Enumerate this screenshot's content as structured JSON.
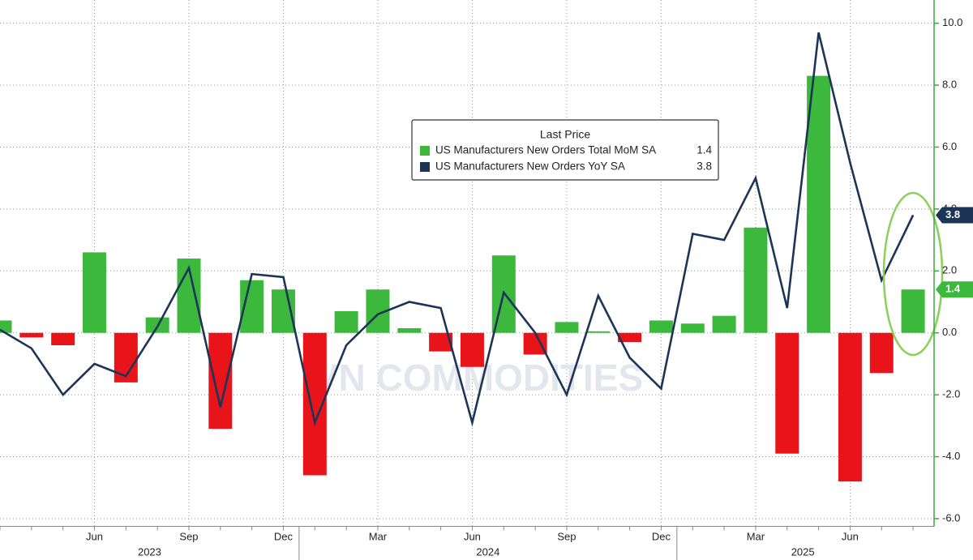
{
  "chart_data": {
    "type": "bar-line",
    "legend_title": "Last Price",
    "watermark": "VN COMMODITIES",
    "categories": [
      null,
      null,
      null,
      "Jun",
      null,
      null,
      "Sep",
      null,
      null,
      "Dec",
      null,
      null,
      "Mar",
      null,
      null,
      "Jun",
      null,
      null,
      "Sep",
      null,
      null,
      "Dec",
      null,
      null,
      "Mar",
      null,
      null,
      "Jun",
      null,
      null
    ],
    "year_labels": [
      "2023",
      "2024",
      "2025"
    ],
    "series": [
      {
        "name": "US Manufacturers New Orders Total MoM SA",
        "type": "bar",
        "color": "#3cb93c",
        "negative_color": "#e8141a",
        "values": [
          0.4,
          -0.15,
          -0.4,
          2.6,
          -1.6,
          0.5,
          2.4,
          -3.1,
          1.7,
          1.4,
          -4.6,
          0.7,
          1.4,
          0.15,
          -0.6,
          -1.1,
          2.5,
          -0.7,
          0.35,
          0.05,
          -0.3,
          0.4,
          0.3,
          0.55,
          3.4,
          -3.9,
          8.3,
          -4.8,
          -1.3,
          1.4
        ]
      },
      {
        "name": "US Manufacturers New Orders YoY SA",
        "type": "line",
        "color": "#1c3557",
        "values": [
          0.1,
          -0.5,
          -2.0,
          -1.0,
          -1.4,
          0.2,
          2.1,
          -2.4,
          1.9,
          1.8,
          -2.9,
          -0.4,
          0.6,
          1.0,
          0.8,
          -2.9,
          1.3,
          0.0,
          -2.0,
          1.2,
          -0.8,
          -1.8,
          3.2,
          3.0,
          5.0,
          0.8,
          9.7,
          5.5,
          1.7,
          3.8
        ]
      }
    ],
    "ylim": [
      -6.25,
      10.75
    ],
    "yticks": [
      {
        "value": -6,
        "label": "-6.0"
      },
      {
        "value": -4,
        "label": "-4.0"
      },
      {
        "value": -2,
        "label": "-2.0"
      },
      {
        "value": 0,
        "label": "0.0"
      },
      {
        "value": 2,
        "label": "2.0"
      },
      {
        "value": 4,
        "label": "4.0"
      },
      {
        "value": 6,
        "label": "6.0"
      },
      {
        "value": 8,
        "label": "8.0"
      },
      {
        "value": 10,
        "label": "10.0"
      }
    ],
    "grid": true,
    "axis_color": "#3aa83a"
  }
}
